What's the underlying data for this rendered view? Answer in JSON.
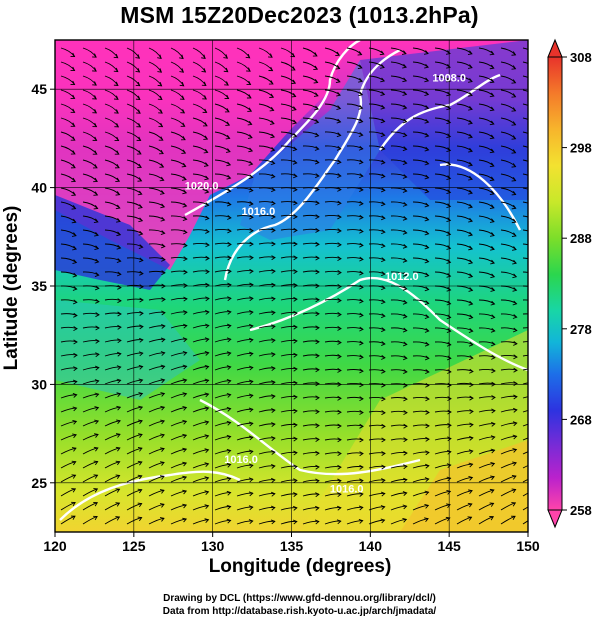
{
  "title": "MSM 15Z20Dec2023 (1013.2hPa)",
  "x_axis": {
    "label": "Longitude (degrees)",
    "range": [
      120,
      150
    ],
    "ticks": [
      "120",
      "125",
      "130",
      "135",
      "140",
      "145",
      "150"
    ]
  },
  "y_axis": {
    "label": "Latitude  (degrees)",
    "range": [
      22.5,
      47.5
    ],
    "ticks": [
      "25",
      "30",
      "35",
      "40",
      "45"
    ]
  },
  "colorbar": {
    "min": 258,
    "max": 308,
    "ticks": [
      "308",
      "298",
      "288",
      "278",
      "268",
      "258"
    ],
    "colors": [
      "#ff44aa",
      "#bb22cc",
      "#7b2bd6",
      "#2d33e0",
      "#1d6fe8",
      "#12b5d9",
      "#18d6a6",
      "#2bd64e",
      "#7cde2a",
      "#c8e82a",
      "#f3e230",
      "#f7b52c",
      "#f47a2a",
      "#e8332b"
    ]
  },
  "contours": [
    {
      "label": "1020.0",
      "lon": 129.3,
      "lat": 39.9
    },
    {
      "label": "1016.0",
      "lon": 132.9,
      "lat": 38.6
    },
    {
      "label": "1008.0",
      "lon": 145.0,
      "lat": 45.4
    },
    {
      "label": "1012.0",
      "lon": 142.0,
      "lat": 35.3
    },
    {
      "label": "1016.0",
      "lon": 131.8,
      "lat": 26.0
    },
    {
      "label": "1016.0",
      "lon": 138.5,
      "lat": 24.5
    }
  ],
  "credits": {
    "line1": "Drawing by DCL (https://www.gfd-dennou.org/library/dcl/)",
    "line2": "Data from http://database.rish.kyoto-u.ac.jp/arch/jmadata/"
  }
}
